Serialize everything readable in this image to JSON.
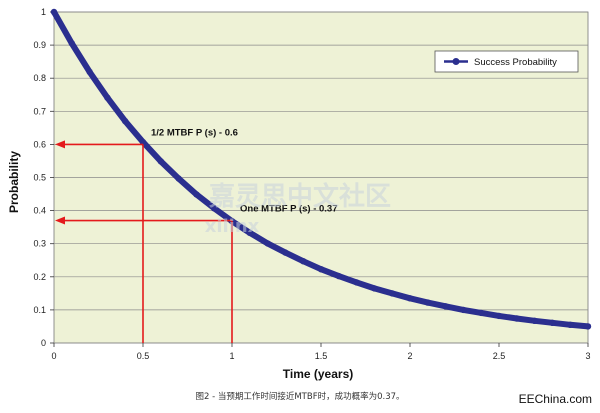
{
  "chart_data": {
    "type": "line",
    "title": "",
    "xlabel": "Time (years)",
    "ylabel": "Probability",
    "xlim": [
      0,
      3
    ],
    "ylim": [
      0,
      1
    ],
    "x_ticks": [
      "0",
      "0.5",
      "1",
      "1.5",
      "2",
      "2.5",
      "3"
    ],
    "x_tick_values": [
      0,
      0.5,
      1,
      1.5,
      2,
      2.5,
      3
    ],
    "y_ticks": [
      "0",
      "0.1",
      "0.2",
      "0.3",
      "0.4",
      "0.5",
      "0.6",
      "0.7",
      "0.8",
      "0.9",
      "1"
    ],
    "y_tick_values": [
      0,
      0.1,
      0.2,
      0.3,
      0.4,
      0.5,
      0.6,
      0.7,
      0.8,
      0.9,
      1
    ],
    "grid": "horizontal",
    "legend_position": "top-right",
    "series": [
      {
        "name": "Success Probability",
        "color": "#2b2f8f",
        "x": [
          0,
          0.1,
          0.2,
          0.3,
          0.4,
          0.5,
          0.6,
          0.7,
          0.8,
          0.9,
          1.0,
          1.1,
          1.2,
          1.3,
          1.4,
          1.5,
          1.6,
          1.7,
          1.8,
          1.9,
          2.0,
          2.1,
          2.2,
          2.3,
          2.4,
          2.5,
          2.6,
          2.7,
          2.8,
          2.9,
          3.0
        ],
        "y": [
          1.0,
          0.905,
          0.819,
          0.741,
          0.67,
          0.607,
          0.549,
          0.497,
          0.449,
          0.407,
          0.368,
          0.333,
          0.301,
          0.273,
          0.247,
          0.223,
          0.202,
          0.183,
          0.165,
          0.15,
          0.135,
          0.122,
          0.111,
          0.1,
          0.091,
          0.082,
          0.074,
          0.067,
          0.061,
          0.055,
          0.05
        ]
      }
    ],
    "annotations": [
      {
        "label": "1/2 MTBF P (s) - 0.6",
        "x": 0.5,
        "y": 0.6
      },
      {
        "label": "One MTBF P (s) - 0.37",
        "x": 1.0,
        "y": 0.37
      }
    ],
    "colors": {
      "plot_bg": "#eef2d6",
      "grid": "#8a8a8a",
      "marker_line": "#e41a1c"
    }
  },
  "caption": "图2 - 当预期工作时间接近MTBF时，成功概率为0.37。",
  "watermark": {
    "line1": "嘉灵思中文社区",
    "line2": "xilinx"
  },
  "brand": "EEChina.com"
}
